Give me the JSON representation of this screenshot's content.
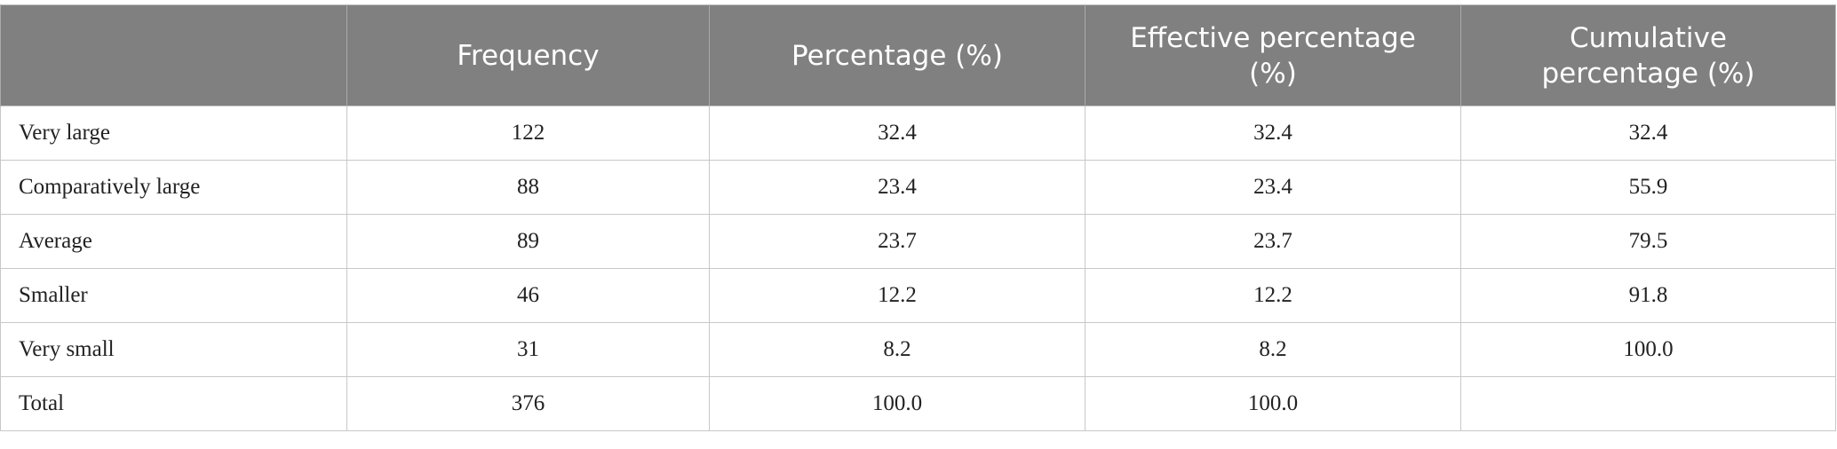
{
  "table": {
    "header": [
      "Frequency",
      "Percentage (%)",
      "Effective percentage (%)",
      "Cumulative percentage (%)"
    ],
    "rows": [
      [
        "Very large",
        "122",
        "32.4",
        "32.4",
        "32.4"
      ],
      [
        "Comparatively large",
        "88",
        "23.4",
        "23.4",
        "55.9"
      ],
      [
        "Average",
        "89",
        "23.7",
        "23.7",
        "79.5"
      ],
      [
        "Smaller",
        "46",
        "12.2",
        "12.2",
        "91.8"
      ],
      [
        "Very small",
        "31",
        "8.2",
        "8.2",
        "100.0"
      ],
      [
        "Total",
        "376",
        "100.0",
        "100.0",
        null
      ]
    ]
  }
}
